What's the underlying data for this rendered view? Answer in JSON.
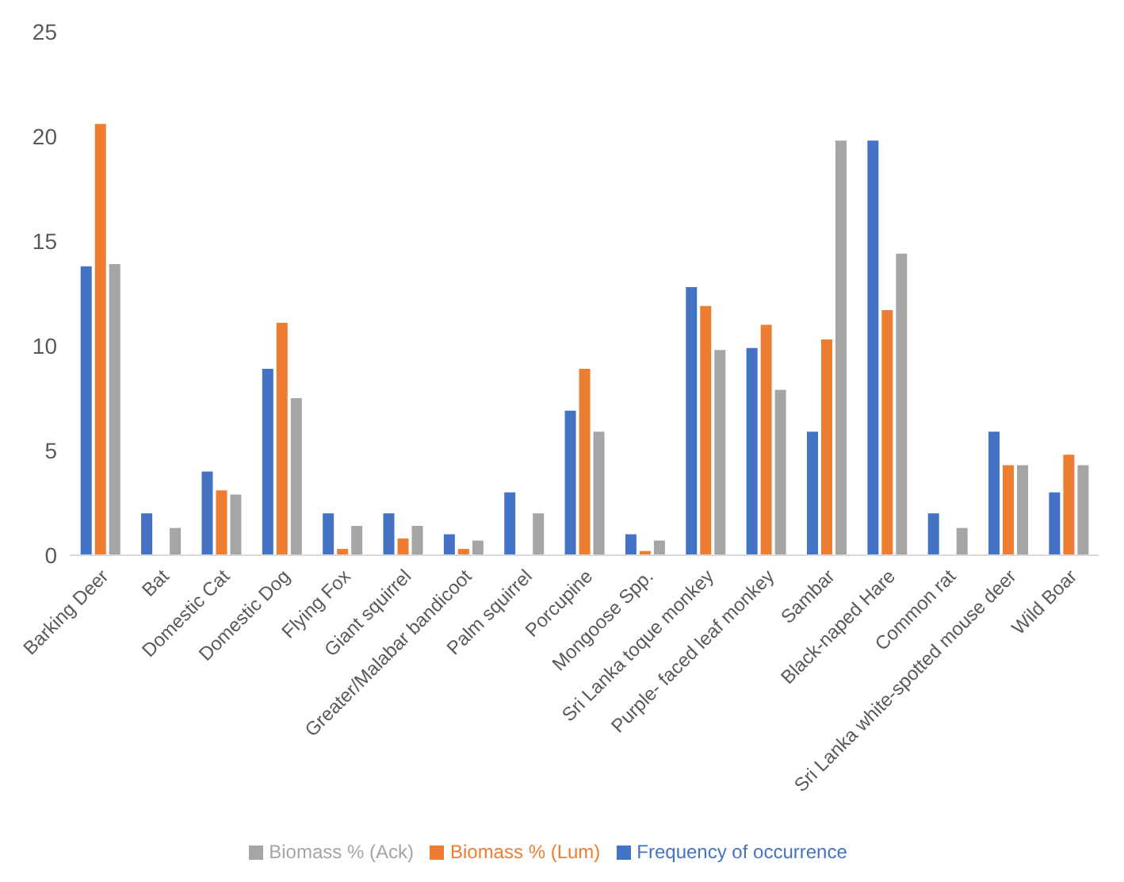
{
  "chart_data": {
    "type": "bar",
    "categories": [
      "Barking Deer",
      "Bat",
      "Domestic Cat",
      "Domestic Dog",
      "Flying Fox",
      "Giant squirrel",
      "Greater/Malabar bandicoot",
      "Palm squirrel",
      "Porcupine",
      "Mongoose Spp.",
      "Sri Lanka toque monkey",
      "Purple- faced leaf monkey",
      "Sambar",
      "Black-naped Hare",
      "Common rat",
      "Sri Lanka white-spotted mouse deer",
      "Wild Boar"
    ],
    "series": [
      {
        "name": "Frequency of occurrence",
        "color": "#4472c4",
        "values": [
          13.8,
          2,
          4,
          8.9,
          2,
          2,
          1,
          3,
          6.9,
          1,
          12.8,
          9.9,
          5.9,
          19.8,
          2,
          5.9,
          3
        ]
      },
      {
        "name": "Biomass % (Lum)",
        "color": "#ed7d31",
        "values": [
          20.6,
          0,
          3.1,
          11.1,
          0.3,
          0.8,
          0.3,
          0,
          8.9,
          0.2,
          11.9,
          11,
          10.3,
          11.7,
          0,
          4.3,
          4.8
        ]
      },
      {
        "name": "Biomass % (Ack)",
        "color": "#a5a5a5",
        "values": [
          13.9,
          1.3,
          2.9,
          7.5,
          1.4,
          1.4,
          0.7,
          2,
          5.9,
          0.7,
          9.8,
          7.9,
          19.8,
          14.4,
          1.3,
          4.3,
          4.3
        ]
      }
    ],
    "ylim": [
      0,
      25
    ],
    "yticks": [
      0,
      5,
      10,
      15,
      20,
      25
    ],
    "grid": false,
    "legend": "bottom"
  }
}
